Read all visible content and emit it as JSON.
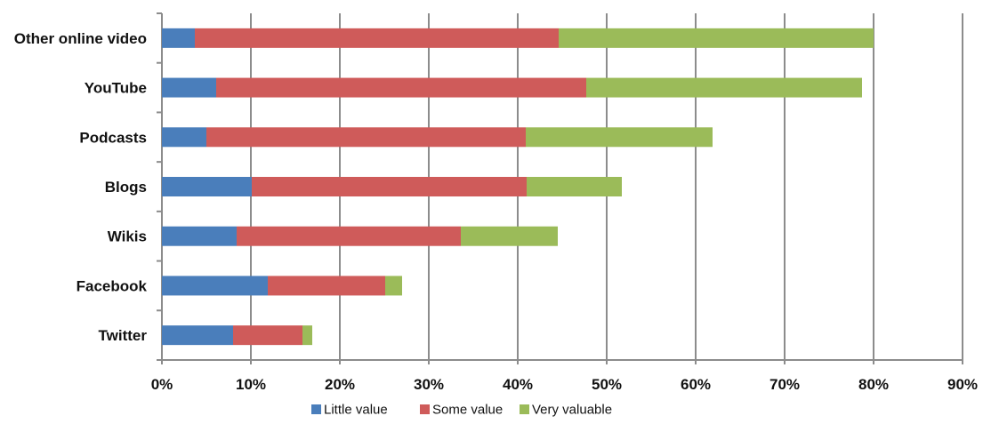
{
  "chart_data": {
    "type": "bar",
    "orientation": "horizontal",
    "stacked": true,
    "categories": [
      "Other online video",
      "YouTube",
      "Podcasts",
      "Blogs",
      "Wikis",
      "Facebook",
      "Twitter"
    ],
    "series": [
      {
        "name": "Little value",
        "color": "#4a7ebb",
        "values": [
          3.7,
          6.1,
          5.0,
          10.1,
          8.4,
          11.9,
          8.0
        ]
      },
      {
        "name": "Some value",
        "color": "#cf5b5a",
        "values": [
          40.9,
          41.6,
          35.9,
          30.9,
          25.2,
          13.2,
          7.8
        ]
      },
      {
        "name": "Very valuable",
        "color": "#9bbb59",
        "values": [
          35.4,
          31.0,
          21.0,
          10.7,
          10.9,
          1.9,
          1.1
        ]
      }
    ],
    "xlim": [
      0,
      90
    ],
    "xticks": [
      "0%",
      "10%",
      "20%",
      "30%",
      "40%",
      "50%",
      "60%",
      "70%",
      "80%",
      "90%"
    ],
    "grid": true,
    "legend_position": "bottom",
    "title": "",
    "xlabel": "",
    "ylabel": ""
  }
}
